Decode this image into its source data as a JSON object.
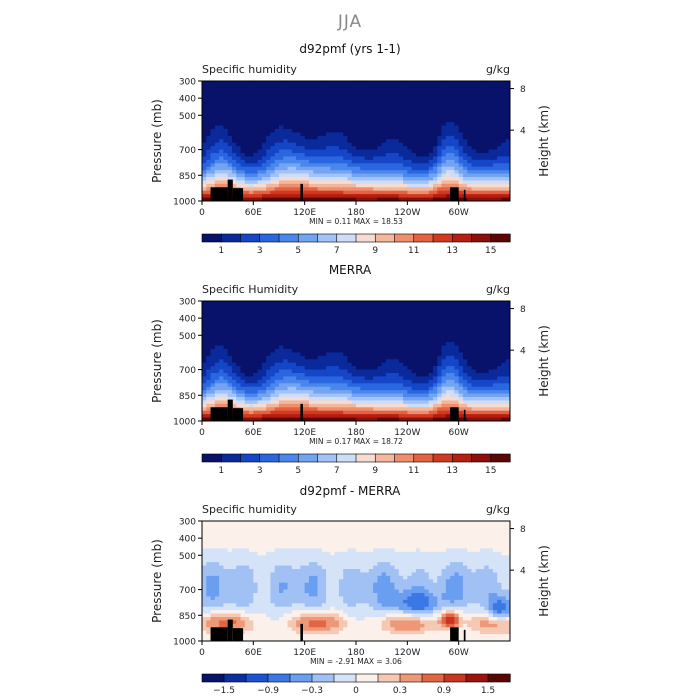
{
  "main_title": "JJA",
  "colors": {
    "seq": [
      "#08126b",
      "#0a2a9c",
      "#1546c8",
      "#2a66e0",
      "#4a86ec",
      "#73a4f2",
      "#a3c2f5",
      "#cdddf7",
      "#f6dcd0",
      "#f3b79c",
      "#ee8e6c",
      "#e4623f",
      "#d23a1f",
      "#b71e12",
      "#8c0f0a",
      "#5c0505"
    ],
    "div": [
      "#08126b",
      "#0c2fa0",
      "#1a52d2",
      "#3b78e6",
      "#6a9ef0",
      "#a1c1f4",
      "#d5e3f8",
      "#fbf0ea",
      "#f5c8b3",
      "#ee9878",
      "#e26544",
      "#c93520",
      "#9c130e",
      "#5c0505"
    ],
    "land": "#000000"
  },
  "chart_data": [
    {
      "type": "heatmap",
      "title": "d92pmf (yrs 1-1)",
      "left_label": "Specific humidity",
      "right_label": "g/kg",
      "ylabel": "Pressure (mb)",
      "y2label": "Height (km)",
      "x_ticks": [
        "0",
        "60E",
        "120E",
        "180",
        "120W",
        "60W"
      ],
      "x_tick_values": [
        0,
        60,
        120,
        180,
        240,
        300
      ],
      "xlim": [
        0,
        360
      ],
      "y_ticks": [
        "300",
        "400",
        "500",
        "700",
        "850",
        "1000"
      ],
      "y_tick_values": [
        300,
        400,
        500,
        700,
        850,
        1000
      ],
      "ylim": [
        300,
        1000
      ],
      "y2_ticks": [
        "8",
        "4"
      ],
      "y2_tick_values": [
        8,
        4
      ],
      "minmax": "MIN =    0.11   MAX =   18.53",
      "colorbar_labels": [
        "1",
        "3",
        "5",
        "7",
        "9",
        "11",
        "13",
        "15"
      ],
      "palette": "seq",
      "scale": 1.0
    },
    {
      "type": "heatmap",
      "title": "MERRA",
      "left_label": "Specific Humidity",
      "right_label": "g/kg",
      "ylabel": "Pressure (mb)",
      "y2label": "Height (km)",
      "x_ticks": [
        "0",
        "60E",
        "120E",
        "180",
        "120W",
        "60W"
      ],
      "x_tick_values": [
        0,
        60,
        120,
        180,
        240,
        300
      ],
      "xlim": [
        0,
        360
      ],
      "y_ticks": [
        "300",
        "400",
        "500",
        "700",
        "850",
        "1000"
      ],
      "y_tick_values": [
        300,
        400,
        500,
        700,
        850,
        1000
      ],
      "ylim": [
        300,
        1000
      ],
      "y2_ticks": [
        "8",
        "4"
      ],
      "y2_tick_values": [
        8,
        4
      ],
      "minmax": "MIN =    0.17   MAX =   18.72",
      "colorbar_labels": [
        "1",
        "3",
        "5",
        "7",
        "9",
        "11",
        "13",
        "15"
      ],
      "palette": "seq",
      "scale": 1.0
    },
    {
      "type": "heatmap",
      "title": "d92pmf - MERRA",
      "left_label": "Specific humidity",
      "right_label": "g/kg",
      "ylabel": "Pressure (mb)",
      "y2label": "Height (km)",
      "x_ticks": [
        "0",
        "60E",
        "120E",
        "180",
        "120W",
        "60W"
      ],
      "x_tick_values": [
        0,
        60,
        120,
        180,
        240,
        300
      ],
      "xlim": [
        0,
        360
      ],
      "y_ticks": [
        "300",
        "400",
        "500",
        "700",
        "850",
        "1000"
      ],
      "y_tick_values": [
        300,
        400,
        500,
        700,
        850,
        1000
      ],
      "ylim": [
        300,
        1000
      ],
      "y2_ticks": [
        "8",
        "4"
      ],
      "y2_tick_values": [
        8,
        4
      ],
      "minmax": "MIN =   -2.91   MAX =    3.06",
      "colorbar_labels": [
        "−1.5",
        "−0.9",
        "−0.3",
        "0",
        "0.3",
        "0.9",
        "1.5"
      ],
      "palette": "div",
      "scale": 1.0
    }
  ]
}
